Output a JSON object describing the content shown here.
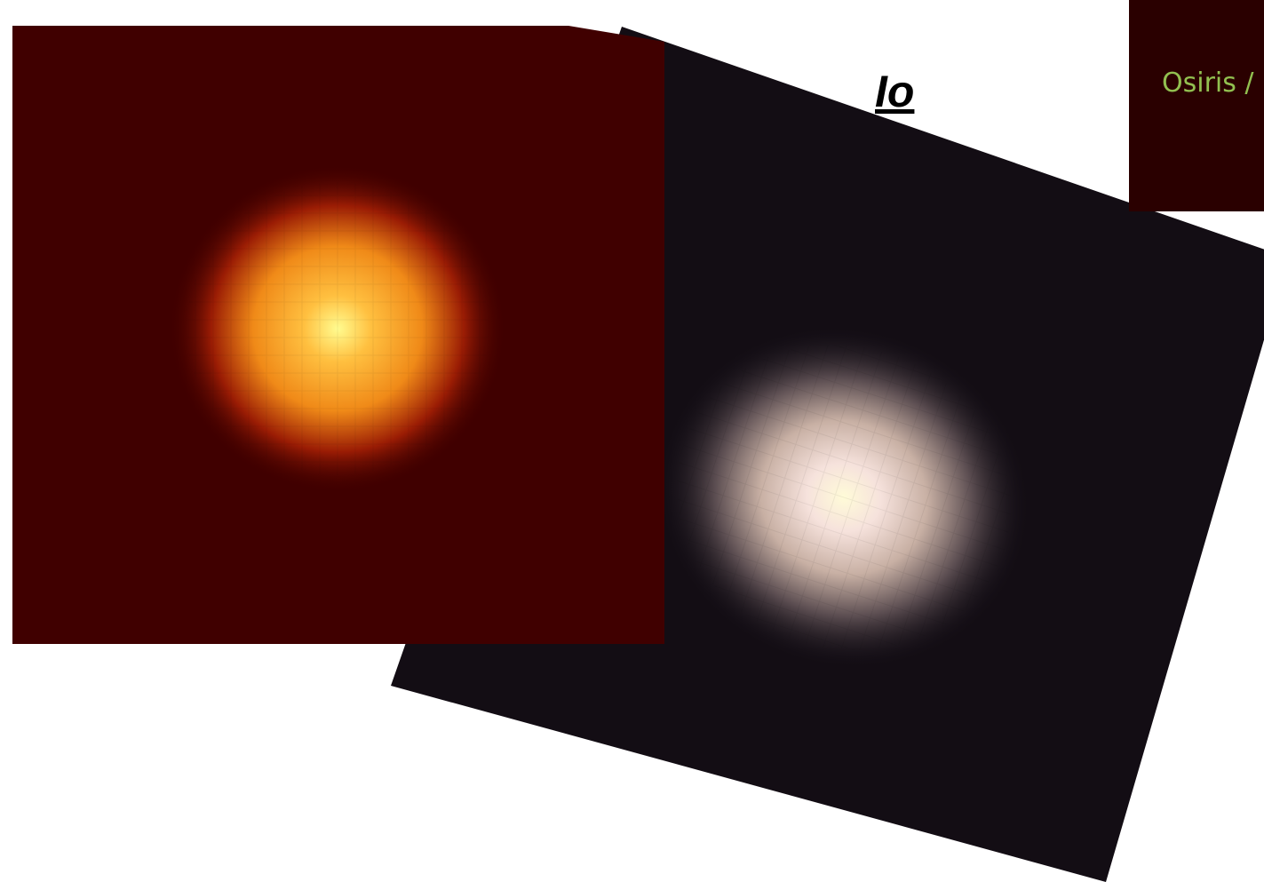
{
  "title": "Io",
  "label": "Osiris /"
}
